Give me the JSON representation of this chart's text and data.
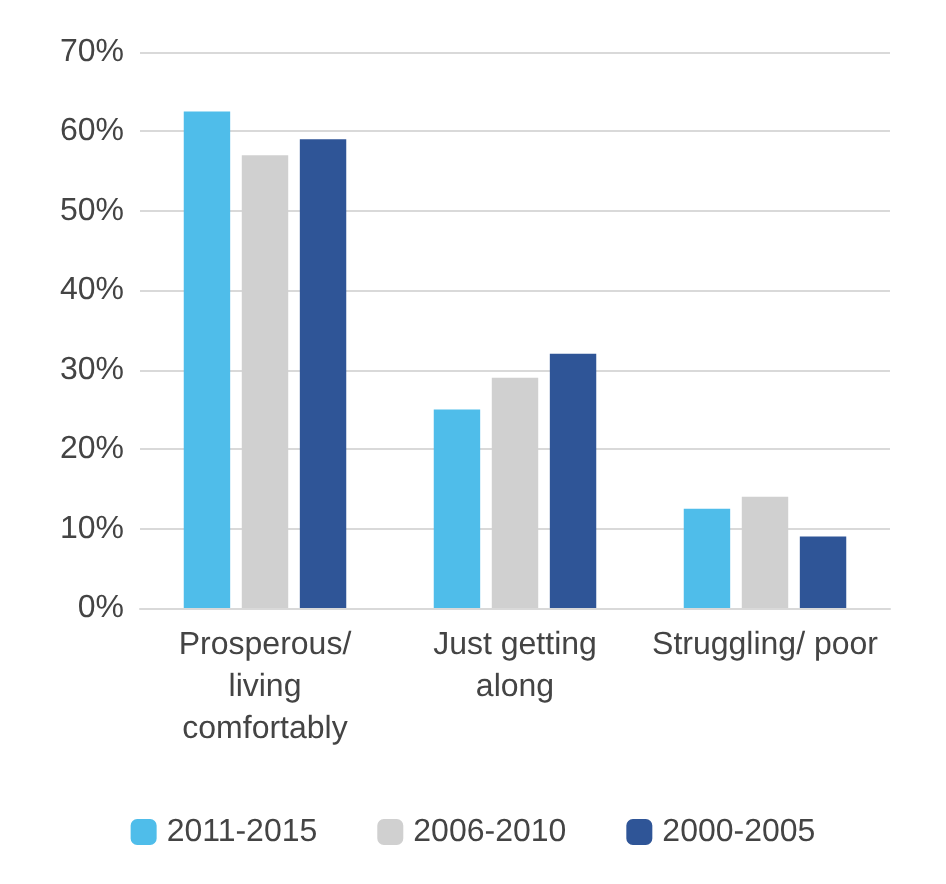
{
  "chart_data": {
    "type": "bar",
    "categories": [
      "Prosperous/\nliving\ncomfortably",
      "Just getting\nalong",
      "Struggling/ poor"
    ],
    "series": [
      {
        "name": "2011-2015",
        "color": "#4fbdea",
        "values": [
          62.5,
          25,
          12.5
        ]
      },
      {
        "name": "2006-2010",
        "color": "#d0d0d0",
        "values": [
          57,
          29,
          14
        ]
      },
      {
        "name": "2000-2005",
        "color": "#2f5597",
        "values": [
          59,
          32,
          9
        ]
      }
    ],
    "ylim": [
      0,
      70
    ],
    "yticks": [
      {
        "value": 0,
        "label": "0%"
      },
      {
        "value": 10,
        "label": "10%"
      },
      {
        "value": 20,
        "label": "20%"
      },
      {
        "value": 30,
        "label": "30%"
      },
      {
        "value": 40,
        "label": "40%"
      },
      {
        "value": 50,
        "label": "50%"
      },
      {
        "value": 60,
        "label": "60%"
      },
      {
        "value": 70,
        "label": "70%"
      }
    ],
    "grid": "y",
    "legend": "bottom"
  }
}
